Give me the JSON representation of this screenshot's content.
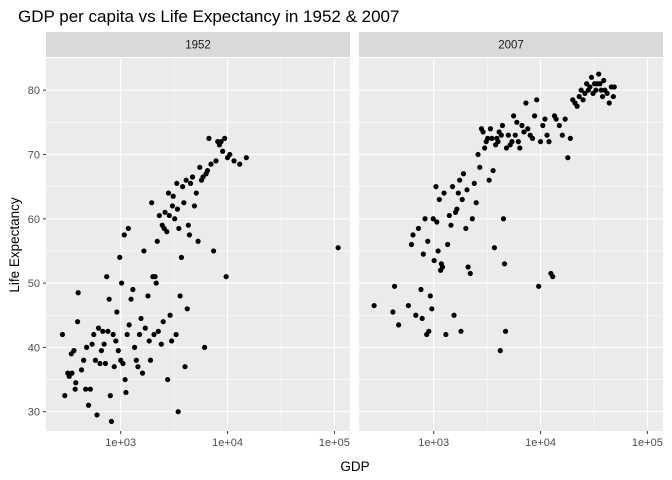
{
  "chart_data": {
    "type": "scatter",
    "title": "GDP per capita vs Life Expectancy in 1952 & 2007",
    "xlabel": "GDP",
    "ylabel": "Life Expectancy",
    "x_scale": "log10",
    "xlim": [
      200,
      140000
    ],
    "ylim": [
      27,
      85
    ],
    "x_ticks": [
      1000,
      10000,
      100000
    ],
    "x_tick_labels": [
      "1e+03",
      "1e+04",
      "1e+05"
    ],
    "y_ticks": [
      30,
      40,
      50,
      60,
      70,
      80
    ],
    "y_tick_labels": [
      "30",
      "40",
      "50",
      "60",
      "70",
      "80"
    ],
    "grid": true,
    "legend": "none",
    "point_color": "#000000",
    "panel_background": "#ebebeb",
    "strip_background": "#d9d9d9",
    "facets": [
      {
        "label": "1952",
        "points": [
          [
            285,
            42
          ],
          [
            300,
            32.5
          ],
          [
            320,
            36
          ],
          [
            330,
            35.5
          ],
          [
            345,
            39
          ],
          [
            350,
            36
          ],
          [
            365,
            39.5
          ],
          [
            375,
            33.5
          ],
          [
            380,
            34.5
          ],
          [
            395,
            44
          ],
          [
            400,
            48.5
          ],
          [
            430,
            36.5
          ],
          [
            450,
            38
          ],
          [
            470,
            33.5
          ],
          [
            480,
            40
          ],
          [
            500,
            31
          ],
          [
            520,
            33.5
          ],
          [
            540,
            40.5
          ],
          [
            560,
            42
          ],
          [
            580,
            38
          ],
          [
            600,
            29.5
          ],
          [
            620,
            43
          ],
          [
            640,
            37.5
          ],
          [
            660,
            39.5
          ],
          [
            680,
            42.5
          ],
          [
            700,
            40.5
          ],
          [
            720,
            37.5
          ],
          [
            740,
            51
          ],
          [
            760,
            42.5
          ],
          [
            780,
            47.5
          ],
          [
            800,
            32.5
          ],
          [
            820,
            28.5
          ],
          [
            850,
            42
          ],
          [
            870,
            37
          ],
          [
            900,
            41
          ],
          [
            920,
            45.5
          ],
          [
            950,
            39.5
          ],
          [
            980,
            54
          ],
          [
            1000,
            38
          ],
          [
            1020,
            50
          ],
          [
            1050,
            37.5
          ],
          [
            1080,
            57.5
          ],
          [
            1100,
            35
          ],
          [
            1120,
            33
          ],
          [
            1150,
            42
          ],
          [
            1180,
            58.5
          ],
          [
            1200,
            43.5
          ],
          [
            1250,
            47.5
          ],
          [
            1300,
            49
          ],
          [
            1350,
            40
          ],
          [
            1400,
            38
          ],
          [
            1450,
            37
          ],
          [
            1500,
            42
          ],
          [
            1550,
            44.5
          ],
          [
            1600,
            36
          ],
          [
            1650,
            55
          ],
          [
            1700,
            43
          ],
          [
            1800,
            48
          ],
          [
            1850,
            41
          ],
          [
            1900,
            38
          ],
          [
            1950,
            62.5
          ],
          [
            2000,
            51
          ],
          [
            2050,
            42
          ],
          [
            2100,
            51
          ],
          [
            2150,
            50
          ],
          [
            2200,
            56.5
          ],
          [
            2250,
            42.5
          ],
          [
            2300,
            60.5
          ],
          [
            2400,
            40.5
          ],
          [
            2450,
            59
          ],
          [
            2500,
            44
          ],
          [
            2550,
            58.5
          ],
          [
            2600,
            61
          ],
          [
            2700,
            58
          ],
          [
            2750,
            35
          ],
          [
            2800,
            64
          ],
          [
            2850,
            60.5
          ],
          [
            2900,
            45
          ],
          [
            3000,
            41
          ],
          [
            3050,
            62
          ],
          [
            3100,
            63.5
          ],
          [
            3200,
            60
          ],
          [
            3300,
            42
          ],
          [
            3350,
            65.5
          ],
          [
            3400,
            61.5
          ],
          [
            3450,
            30
          ],
          [
            3500,
            58.5
          ],
          [
            3600,
            48
          ],
          [
            3700,
            54
          ],
          [
            3800,
            65
          ],
          [
            3900,
            62.5
          ],
          [
            4000,
            37
          ],
          [
            4100,
            66
          ],
          [
            4200,
            46
          ],
          [
            4300,
            59
          ],
          [
            4400,
            57.5
          ],
          [
            4500,
            65.5
          ],
          [
            4700,
            66.5
          ],
          [
            4900,
            62
          ],
          [
            5100,
            64
          ],
          [
            5300,
            56.5
          ],
          [
            5500,
            68
          ],
          [
            5700,
            66
          ],
          [
            5900,
            66.5
          ],
          [
            6100,
            40
          ],
          [
            6300,
            67
          ],
          [
            6500,
            67.5
          ],
          [
            6700,
            72.5
          ],
          [
            7000,
            68.5
          ],
          [
            7400,
            55
          ],
          [
            7800,
            69
          ],
          [
            8100,
            72
          ],
          [
            8400,
            71.5
          ],
          [
            8700,
            72
          ],
          [
            9000,
            70.5
          ],
          [
            9400,
            72.5
          ],
          [
            9700,
            51
          ],
          [
            10000,
            69.5
          ],
          [
            10500,
            70
          ],
          [
            11500,
            69
          ],
          [
            13000,
            68.5
          ],
          [
            15000,
            69.5
          ],
          [
            108382,
            55.5
          ]
        ]
      },
      {
        "label": "2007",
        "points": [
          [
            277,
            46.5
          ],
          [
            415,
            45.5
          ],
          [
            430,
            49.5
          ],
          [
            470,
            43.5
          ],
          [
            580,
            46.5
          ],
          [
            620,
            56
          ],
          [
            640,
            57.5
          ],
          [
            680,
            45
          ],
          [
            720,
            58.5
          ],
          [
            760,
            49
          ],
          [
            780,
            44.5
          ],
          [
            800,
            54.5
          ],
          [
            830,
            60
          ],
          [
            860,
            42
          ],
          [
            880,
            56.5
          ],
          [
            900,
            42.5
          ],
          [
            930,
            48
          ],
          [
            960,
            46
          ],
          [
            990,
            60
          ],
          [
            1010,
            53.5
          ],
          [
            1050,
            65
          ],
          [
            1070,
            59.5
          ],
          [
            1100,
            55
          ],
          [
            1130,
            63
          ],
          [
            1160,
            52
          ],
          [
            1180,
            53
          ],
          [
            1210,
            52.5
          ],
          [
            1250,
            64
          ],
          [
            1300,
            42
          ],
          [
            1350,
            56
          ],
          [
            1400,
            60.5
          ],
          [
            1450,
            59
          ],
          [
            1500,
            65
          ],
          [
            1550,
            45
          ],
          [
            1600,
            61
          ],
          [
            1650,
            61.5
          ],
          [
            1700,
            64
          ],
          [
            1750,
            66
          ],
          [
            1800,
            42.5
          ],
          [
            1850,
            63
          ],
          [
            1900,
            67
          ],
          [
            2000,
            58.5
          ],
          [
            2050,
            64.5
          ],
          [
            2100,
            52.5
          ],
          [
            2200,
            51.5
          ],
          [
            2300,
            60
          ],
          [
            2400,
            65.5
          ],
          [
            2500,
            62.5
          ],
          [
            2600,
            70
          ],
          [
            2700,
            68
          ],
          [
            2800,
            74
          ],
          [
            2900,
            73.5
          ],
          [
            3000,
            71
          ],
          [
            3100,
            72
          ],
          [
            3200,
            72.5
          ],
          [
            3300,
            66
          ],
          [
            3400,
            74
          ],
          [
            3500,
            72.5
          ],
          [
            3600,
            67.5
          ],
          [
            3700,
            55.5
          ],
          [
            3800,
            71.5
          ],
          [
            3900,
            72.5
          ],
          [
            4000,
            72
          ],
          [
            4100,
            73.5
          ],
          [
            4200,
            39.5
          ],
          [
            4300,
            73
          ],
          [
            4400,
            74.5
          ],
          [
            4500,
            60
          ],
          [
            4600,
            53
          ],
          [
            4700,
            42.5
          ],
          [
            4800,
            71
          ],
          [
            5000,
            73
          ],
          [
            5200,
            71.5
          ],
          [
            5400,
            72
          ],
          [
            5600,
            76
          ],
          [
            5800,
            73
          ],
          [
            6000,
            75
          ],
          [
            6200,
            72
          ],
          [
            6400,
            71
          ],
          [
            6700,
            74.5
          ],
          [
            7000,
            73.5
          ],
          [
            7300,
            78
          ],
          [
            7600,
            74
          ],
          [
            8000,
            73
          ],
          [
            8400,
            72.5
          ],
          [
            8800,
            76
          ],
          [
            9200,
            78.5
          ],
          [
            9600,
            49.5
          ],
          [
            10000,
            72
          ],
          [
            10500,
            74.5
          ],
          [
            11000,
            75.5
          ],
          [
            11500,
            73
          ],
          [
            12000,
            72
          ],
          [
            12500,
            51.5
          ],
          [
            13000,
            51
          ],
          [
            13500,
            76
          ],
          [
            14000,
            75.5
          ],
          [
            15000,
            74.5
          ],
          [
            16000,
            73
          ],
          [
            17000,
            75.5
          ],
          [
            18000,
            69.5
          ],
          [
            19000,
            72.5
          ],
          [
            20000,
            78.5
          ],
          [
            21000,
            78
          ],
          [
            22000,
            77.5
          ],
          [
            23000,
            79
          ],
          [
            24000,
            80
          ],
          [
            25000,
            78.5
          ],
          [
            26000,
            79.5
          ],
          [
            27000,
            81
          ],
          [
            28000,
            80
          ],
          [
            29000,
            80.5
          ],
          [
            30000,
            82
          ],
          [
            31000,
            79.5
          ],
          [
            32000,
            81
          ],
          [
            33000,
            80
          ],
          [
            34000,
            81
          ],
          [
            35000,
            82.5
          ],
          [
            36000,
            81
          ],
          [
            37000,
            80
          ],
          [
            38000,
            79
          ],
          [
            39000,
            81.5
          ],
          [
            40000,
            80
          ],
          [
            42000,
            79.5
          ],
          [
            44000,
            78
          ],
          [
            46000,
            80.5
          ],
          [
            48000,
            79
          ],
          [
            49000,
            80.5
          ]
        ]
      }
    ]
  }
}
